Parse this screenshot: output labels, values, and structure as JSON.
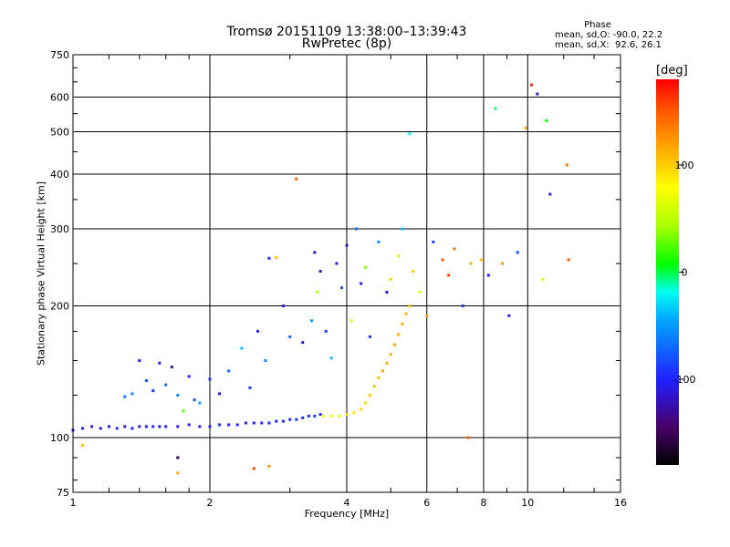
{
  "header": {
    "title_line1": "Tromsø 20151109 13:38:00–13:39:43",
    "title_line2": "RwPretec (8p)",
    "phase_title": "Phase",
    "phase_stats_o": "mean, sd,O: -90.0, 22.2",
    "phase_stats_x": "mean, sd,X:  92.6, 26.1"
  },
  "colorbar": {
    "unit": "[deg]",
    "ticks": [
      "100",
      "0",
      "-100"
    ],
    "range": [
      -180,
      180
    ]
  },
  "colors": {
    "axes": "#000000",
    "background": "#ffffff"
  },
  "chart_data": {
    "type": "scatter",
    "title": "Tromsø 20151109 13:38:00–13:39:43",
    "subtitle": "RwPretec (8p)",
    "xlabel": "Frequency [MHz]",
    "ylabel": "Stationary phase Virtual Height [km]",
    "x_scale": "log",
    "y_scale": "log",
    "xlim": [
      1,
      16
    ],
    "ylim": [
      75,
      750
    ],
    "x_ticks": [
      1,
      2,
      4,
      6,
      8,
      10,
      16
    ],
    "y_ticks": [
      75,
      100,
      200,
      300,
      400,
      500,
      600,
      750
    ],
    "grid": true,
    "color_meaning": "phase [deg]",
    "o_trace": [
      [
        1.0,
        104,
        -100
      ],
      [
        1.05,
        105,
        -105
      ],
      [
        1.1,
        106,
        -98
      ],
      [
        1.15,
        105,
        -110
      ],
      [
        1.2,
        106,
        -100
      ],
      [
        1.25,
        105,
        -95
      ],
      [
        1.3,
        106,
        -108
      ],
      [
        1.35,
        105,
        -100
      ],
      [
        1.4,
        106,
        -112
      ],
      [
        1.45,
        106,
        -100
      ],
      [
        1.5,
        106,
        -96
      ],
      [
        1.55,
        106,
        -105
      ],
      [
        1.6,
        106,
        -100
      ],
      [
        1.7,
        106,
        -108
      ],
      [
        1.8,
        107,
        -100
      ],
      [
        1.9,
        106,
        -104
      ],
      [
        2.0,
        106,
        -100
      ],
      [
        2.1,
        107,
        -96
      ],
      [
        2.2,
        107,
        -102
      ],
      [
        2.3,
        107,
        -100
      ],
      [
        2.4,
        108,
        -98
      ],
      [
        2.5,
        108,
        -105
      ],
      [
        2.6,
        108,
        -100
      ],
      [
        2.7,
        108,
        -96
      ],
      [
        2.8,
        109,
        -100
      ],
      [
        2.9,
        109,
        -104
      ],
      [
        3.0,
        110,
        -100
      ],
      [
        3.1,
        110,
        -92
      ],
      [
        3.2,
        111,
        -100
      ],
      [
        3.3,
        112,
        -96
      ],
      [
        3.4,
        112,
        -88
      ],
      [
        3.5,
        113,
        -95
      ]
    ],
    "x_trace": [
      [
        3.55,
        112,
        80
      ],
      [
        3.7,
        112,
        85
      ],
      [
        3.85,
        112,
        90
      ],
      [
        4.0,
        113,
        95
      ],
      [
        4.15,
        114,
        92
      ],
      [
        4.3,
        116,
        98
      ],
      [
        4.4,
        120,
        100
      ],
      [
        4.5,
        125,
        105
      ],
      [
        4.6,
        131,
        110
      ],
      [
        4.7,
        137,
        112
      ],
      [
        4.8,
        142,
        118
      ],
      [
        4.9,
        148,
        120
      ],
      [
        5.0,
        155,
        115
      ],
      [
        5.1,
        163,
        120
      ],
      [
        5.2,
        172,
        118
      ],
      [
        5.3,
        182,
        122
      ],
      [
        5.4,
        192,
        115
      ],
      [
        5.5,
        200,
        110
      ]
    ],
    "scattered_echoes": [
      [
        1.3,
        124,
        -70
      ],
      [
        1.35,
        126,
        -60
      ],
      [
        1.4,
        150,
        -100
      ],
      [
        1.45,
        135,
        -80
      ],
      [
        1.5,
        128,
        -90
      ],
      [
        1.55,
        148,
        -110
      ],
      [
        1.6,
        132,
        -70
      ],
      [
        1.65,
        145,
        -120
      ],
      [
        1.7,
        125,
        -60
      ],
      [
        1.75,
        115,
        20
      ],
      [
        1.8,
        138,
        -100
      ],
      [
        1.85,
        122,
        -80
      ],
      [
        1.9,
        120,
        -50
      ],
      [
        2.0,
        136,
        -90
      ],
      [
        2.1,
        126,
        -110
      ],
      [
        2.2,
        142,
        -70
      ],
      [
        2.35,
        160,
        -40
      ],
      [
        2.45,
        130,
        -90
      ],
      [
        2.55,
        175,
        -100
      ],
      [
        2.65,
        150,
        -60
      ],
      [
        2.7,
        257,
        -100
      ],
      [
        2.8,
        258,
        110
      ],
      [
        2.9,
        200,
        -110
      ],
      [
        3.0,
        170,
        -70
      ],
      [
        3.1,
        390,
        150
      ],
      [
        3.2,
        165,
        -110
      ],
      [
        3.35,
        185,
        -50
      ],
      [
        3.4,
        265,
        -110
      ],
      [
        3.45,
        215,
        40
      ],
      [
        3.5,
        240,
        -120
      ],
      [
        3.6,
        175,
        -90
      ],
      [
        3.7,
        152,
        -40
      ],
      [
        3.8,
        250,
        -110
      ],
      [
        3.9,
        220,
        -80
      ],
      [
        4.0,
        275,
        -120
      ],
      [
        4.1,
        185,
        60
      ],
      [
        4.2,
        300,
        -70
      ],
      [
        4.3,
        225,
        -110
      ],
      [
        4.4,
        245,
        30
      ],
      [
        4.5,
        170,
        -90
      ],
      [
        4.7,
        280,
        -60
      ],
      [
        4.9,
        215,
        -110
      ],
      [
        5.0,
        230,
        100
      ],
      [
        5.2,
        260,
        90
      ],
      [
        5.3,
        300,
        -40
      ],
      [
        5.5,
        495,
        -20
      ],
      [
        5.6,
        240,
        110
      ],
      [
        5.8,
        215,
        60
      ],
      [
        6.0,
        190,
        120
      ],
      [
        6.2,
        280,
        -90
      ],
      [
        6.5,
        255,
        150
      ],
      [
        6.7,
        235,
        160
      ],
      [
        6.9,
        270,
        140
      ],
      [
        7.2,
        200,
        -90
      ],
      [
        7.5,
        250,
        120
      ],
      [
        7.9,
        255,
        110
      ],
      [
        8.2,
        235,
        -100
      ],
      [
        8.5,
        565,
        -10
      ],
      [
        8.8,
        250,
        130
      ],
      [
        9.1,
        190,
        -110
      ],
      [
        9.5,
        265,
        -80
      ],
      [
        9.9,
        510,
        120
      ],
      [
        10.2,
        640,
        170
      ],
      [
        10.5,
        610,
        -110
      ],
      [
        10.8,
        230,
        60
      ],
      [
        11.0,
        530,
        0
      ],
      [
        11.2,
        360,
        -110
      ],
      [
        12.2,
        420,
        140
      ],
      [
        12.3,
        255,
        150
      ],
      [
        1.05,
        96,
        110
      ],
      [
        1.7,
        90,
        -150
      ],
      [
        1.7,
        83,
        120
      ],
      [
        2.5,
        85,
        160
      ],
      [
        2.7,
        86,
        130
      ],
      [
        7.4,
        100,
        150
      ]
    ]
  }
}
